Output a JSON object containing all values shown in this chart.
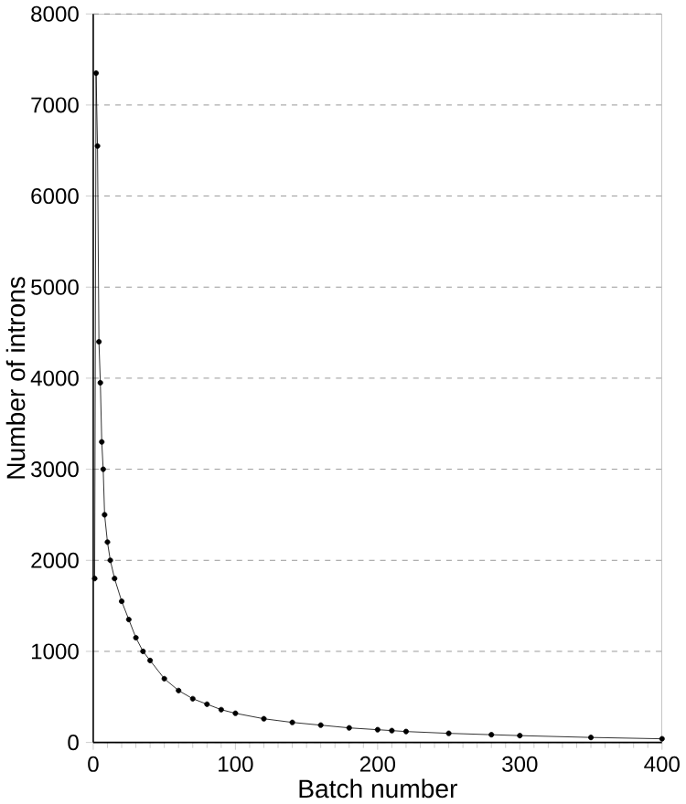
{
  "chart_data": {
    "type": "line",
    "xlabel": "Batch number",
    "ylabel": "Number of introns",
    "x": [
      1,
      2,
      3,
      4,
      5,
      6,
      7,
      8,
      10,
      12,
      15,
      20,
      25,
      30,
      35,
      40,
      50,
      60,
      70,
      80,
      90,
      100,
      120,
      140,
      160,
      180,
      200,
      210,
      220,
      250,
      280,
      300,
      350,
      400
    ],
    "series": [
      {
        "color": "#000000",
        "values": [
          1800,
          7350,
          6550,
          4400,
          3950,
          3300,
          3000,
          2500,
          2200,
          2000,
          1800,
          1550,
          1350,
          1150,
          1000,
          900,
          700,
          570,
          480,
          420,
          360,
          320,
          260,
          220,
          190,
          160,
          140,
          130,
          120,
          100,
          85,
          75,
          55,
          40
        ]
      }
    ],
    "xlim": [
      0,
      400
    ],
    "ylim": [
      0,
      8000
    ],
    "xticks": [
      0,
      100,
      200,
      300,
      400
    ],
    "yticks": [
      0,
      1000,
      2000,
      3000,
      4000,
      5000,
      6000,
      7000,
      8000
    ],
    "grid": "y",
    "marker": "circle",
    "line_style": "solid"
  }
}
